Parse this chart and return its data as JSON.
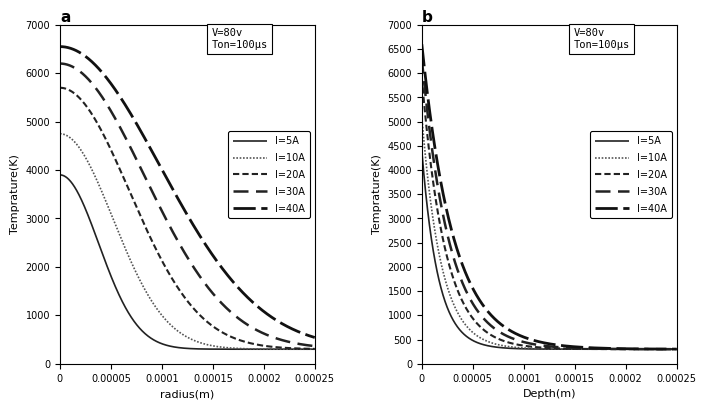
{
  "panel_a": {
    "title": "a",
    "xlabel": "radius(m)",
    "ylabel": "Temprature(K)",
    "ylim": [
      0,
      7000
    ],
    "xlim": [
      0,
      0.00025
    ],
    "yticks": [
      0,
      1000,
      2000,
      3000,
      4000,
      5000,
      6000,
      7000
    ],
    "xticks": [
      0,
      5e-05,
      0.0001,
      0.00015,
      0.0002,
      0.00025
    ],
    "annotation_lines": [
      "V=80v",
      "Ton=100μs"
    ],
    "curves": [
      {
        "label": "I=5A",
        "T0": 3900,
        "sigma": 3.8e-05,
        "style": "solid",
        "color": "#222222",
        "lw": 1.2
      },
      {
        "label": "I=10A",
        "T0": 4750,
        "sigma": 5.2e-05,
        "style": "dotted",
        "color": "#555555",
        "lw": 1.2
      },
      {
        "label": "I=20A",
        "T0": 5700,
        "sigma": 6.8e-05,
        "style": "shortdash",
        "color": "#222222",
        "lw": 1.5
      },
      {
        "label": "I=30A",
        "T0": 6200,
        "sigma": 8.3e-05,
        "style": "longdash",
        "color": "#222222",
        "lw": 1.8
      },
      {
        "label": "I=40A",
        "T0": 6550,
        "sigma": 9.8e-05,
        "style": "longerdash",
        "color": "#111111",
        "lw": 2.0
      }
    ]
  },
  "panel_b": {
    "title": "b",
    "xlabel": "Depth(m)",
    "ylabel": "Temprature(K)",
    "ylim": [
      0,
      7000
    ],
    "xlim": [
      0,
      0.00025
    ],
    "yticks": [
      0,
      500,
      1000,
      1500,
      2000,
      2500,
      3000,
      3500,
      4000,
      4500,
      5000,
      5500,
      6000,
      6500,
      7000
    ],
    "xticks": [
      0,
      5e-05,
      0.0001,
      0.00015,
      0.0002,
      0.00025
    ],
    "annotation_lines": [
      "V=80v",
      "Ton=100μs"
    ],
    "curves": [
      {
        "label": "I=5A",
        "T0": 4400,
        "sigma": 1.6e-05,
        "style": "solid",
        "color": "#222222",
        "lw": 1.2
      },
      {
        "label": "I=10A",
        "T0": 5100,
        "sigma": 1.9e-05,
        "style": "dotted",
        "color": "#555555",
        "lw": 1.2
      },
      {
        "label": "I=20A",
        "T0": 5900,
        "sigma": 2.3e-05,
        "style": "shortdash",
        "color": "#222222",
        "lw": 1.5
      },
      {
        "label": "I=30A",
        "T0": 6300,
        "sigma": 2.7e-05,
        "style": "longdash",
        "color": "#222222",
        "lw": 1.8
      },
      {
        "label": "I=40A",
        "T0": 6600,
        "sigma": 3.1e-05,
        "style": "longerdash",
        "color": "#111111",
        "lw": 2.0
      }
    ]
  },
  "background_color": "#ffffff",
  "T_ambient": 300
}
